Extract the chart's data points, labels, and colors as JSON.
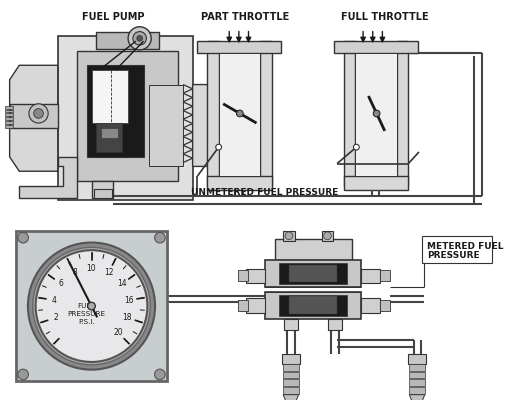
{
  "background_color": "#ffffff",
  "line_color": "#333333",
  "dark_color": "#1a1a1a",
  "mid_gray": "#888888",
  "light_gray": "#cccccc",
  "pump_gray": "#b0b0b0",
  "face_gray": "#d8d8d8",
  "labels": {
    "fuel_pump": "FUEL PUMP",
    "part_throttle": "PART THROTTLE",
    "full_throttle": "FULL THROTTLE",
    "unmetered": "UNMETERED FUEL PRESSURE",
    "metered_line1": "METERED FUEL",
    "metered_line2": "PRESSURE",
    "fuel_label": "FUEL\nPRESSURE\nP.S.I.",
    "gauge_nums": [
      2,
      4,
      6,
      8,
      10,
      12,
      14,
      16,
      18,
      20
    ]
  },
  "figsize": [
    5.16,
    4.07
  ],
  "dpi": 100
}
